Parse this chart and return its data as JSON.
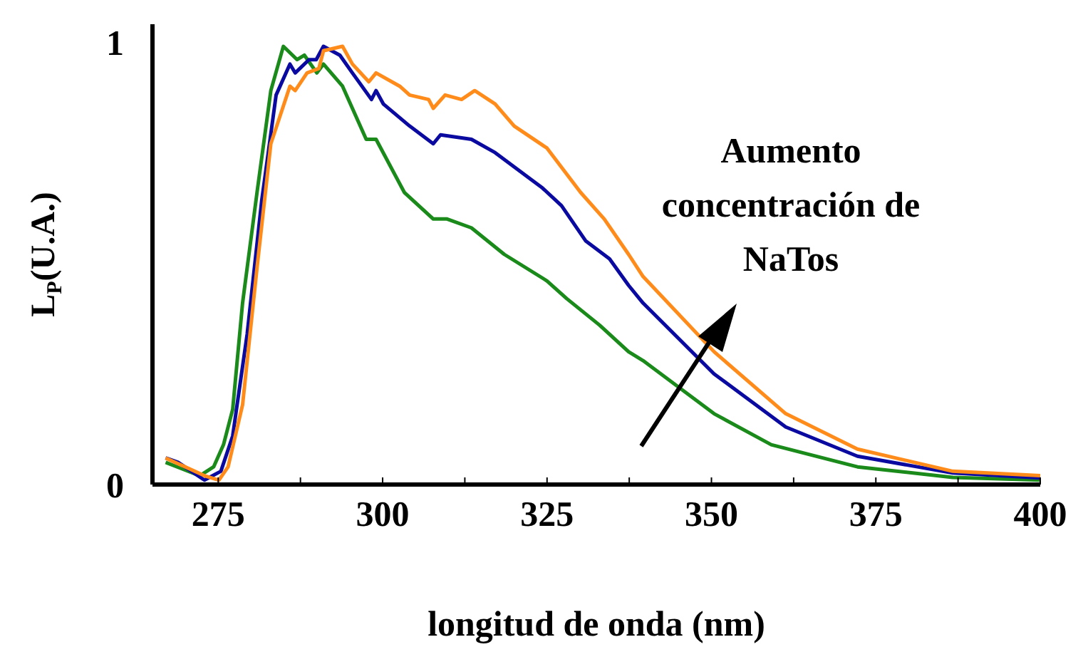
{
  "chart_data": {
    "type": "line",
    "xlabel": "longitud de onda (nm)",
    "ylabel": "L$_{P}$(U.A.)",
    "xlim": [
      265,
      400
    ],
    "ylim": [
      0,
      1.04
    ],
    "xticks": [
      275,
      {
        "value": 287.5,
        "label": null
      },
      300,
      {
        "value": 312.5,
        "label": null
      },
      325,
      {
        "value": 337.5,
        "label": null
      },
      350,
      {
        "value": 362.5,
        "label": null
      },
      375,
      {
        "value": 387.5,
        "label": null
      },
      400
    ],
    "yticks": [
      0,
      1
    ],
    "grid": false,
    "legend": false,
    "marker": "none",
    "line_style": "solid",
    "annotations": [
      "Aumento concentración de NaTos"
    ],
    "series": [
      {
        "color": "#1a8a1a",
        "x": [
          267,
          272.2,
          274.3,
          275.8,
          277.2,
          278.7,
          280.9,
          283,
          284.9,
          287,
          288.1,
          290,
          291,
          293.9,
          297.5,
          299,
          303.3,
          307.7,
          309.8,
          313.5,
          318.5,
          325,
          328,
          333,
          337.4,
          339.6,
          350.4,
          359.1,
          372.2,
          386.7,
          400
        ],
        "values": [
          0.05,
          0.02,
          0.04,
          0.09,
          0.17,
          0.41,
          0.66,
          0.89,
          0.99,
          0.96,
          0.97,
          0.93,
          0.95,
          0.9,
          0.78,
          0.78,
          0.66,
          0.6,
          0.6,
          0.58,
          0.52,
          0.46,
          0.42,
          0.36,
          0.3,
          0.28,
          0.16,
          0.09,
          0.04,
          0.016,
          0.01
        ]
      },
      {
        "color": "#0a0aa0",
        "x": [
          267,
          268.9,
          272.9,
          275.4,
          277.2,
          279.4,
          281.6,
          283.8,
          285.9,
          286.7,
          288.8,
          289.9,
          291,
          293.5,
          295.4,
          298.3,
          299,
          300.1,
          304.1,
          307.7,
          308.8,
          313.5,
          317.1,
          320.7,
          324.3,
          327.2,
          330.9,
          334.5,
          337.4,
          339.6,
          350.4,
          361.3,
          372.2,
          386.7,
          400
        ],
        "values": [
          0.06,
          0.05,
          0.01,
          0.03,
          0.11,
          0.34,
          0.64,
          0.88,
          0.95,
          0.93,
          0.96,
          0.96,
          0.99,
          0.97,
          0.93,
          0.87,
          0.89,
          0.86,
          0.81,
          0.77,
          0.79,
          0.78,
          0.75,
          0.71,
          0.67,
          0.63,
          0.55,
          0.51,
          0.45,
          0.41,
          0.25,
          0.13,
          0.064,
          0.026,
          0.015
        ]
      },
      {
        "color": "#ff8c1a",
        "x": [
          267,
          272.9,
          275.1,
          276.5,
          278.7,
          280.9,
          283,
          285.9,
          286.7,
          288.5,
          290.3,
          291,
          293.9,
          295.4,
          297.9,
          299,
          302.6,
          304.1,
          307,
          307.7,
          309.5,
          312,
          314,
          317.1,
          320,
          325,
          330.1,
          333.7,
          337.4,
          339.6,
          350.4,
          361.3,
          372.2,
          386.7,
          400
        ],
        "values": [
          0.06,
          0.02,
          0.01,
          0.04,
          0.18,
          0.49,
          0.77,
          0.9,
          0.89,
          0.93,
          0.94,
          0.98,
          0.99,
          0.95,
          0.91,
          0.93,
          0.9,
          0.88,
          0.87,
          0.85,
          0.88,
          0.87,
          0.89,
          0.86,
          0.81,
          0.76,
          0.66,
          0.6,
          0.52,
          0.47,
          0.3,
          0.16,
          0.08,
          0.03,
          0.02
        ]
      }
    ]
  }
}
